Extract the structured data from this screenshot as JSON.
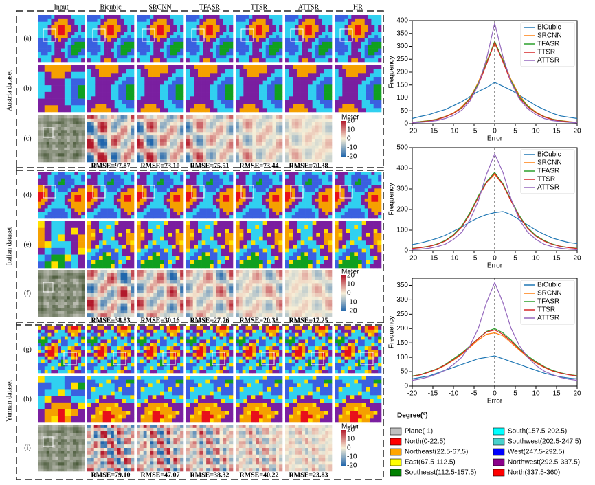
{
  "columns": [
    "Input",
    "Bicubic",
    "SRCNN",
    "TFASR",
    "TTSR",
    "ATTSR",
    "HR"
  ],
  "datasets": [
    {
      "name": "Austria dataset",
      "rows": [
        "(a)",
        "(b)",
        "(c)"
      ],
      "rmse": [
        "RMSE=97.87",
        "RMSE=73.10",
        "RMSE=75.51",
        "RMSE=73.44",
        "RMSE=70.38"
      ]
    },
    {
      "name": "Italian dataset",
      "rows": [
        "(d)",
        "(e)",
        "(f)"
      ],
      "rmse": [
        "RMSE=38.83",
        "RMSE=30.16",
        "RMSE=27.76",
        "RMSE=20.38",
        "RMSE=17.25"
      ]
    },
    {
      "name": "Yunnan dataset",
      "rows": [
        "(g)",
        "(h)",
        "(i)"
      ],
      "rmse": [
        "RMSE=79.10",
        "RMSE=47.07",
        "RMSE=38.32",
        "RMSE=40.22",
        "RMSE=23.83"
      ]
    }
  ],
  "colorbar": {
    "title": "Meter",
    "ticks": [
      20,
      10,
      0,
      -10,
      -20
    ]
  },
  "chart_data": [
    {
      "type": "line",
      "xlabel": "Error",
      "ylabel": "Frequency",
      "x": [
        -20,
        -18,
        -16,
        -14,
        -12,
        -10,
        -8,
        -6,
        -4,
        -2,
        0,
        2,
        4,
        6,
        8,
        10,
        12,
        14,
        16,
        18,
        20
      ],
      "xlim": [
        -20,
        20
      ],
      "xticks": [
        -20,
        -15,
        -10,
        -5,
        0,
        5,
        10,
        15,
        20
      ],
      "ylim": [
        0,
        400
      ],
      "yticks": [
        0,
        50,
        100,
        150,
        200,
        250,
        300,
        350,
        400
      ],
      "series": [
        {
          "name": "BiCubic",
          "color": "#1f77b4",
          "values": [
            20,
            28,
            35,
            45,
            55,
            70,
            85,
            105,
            125,
            140,
            160,
            145,
            130,
            110,
            90,
            70,
            55,
            40,
            30,
            25,
            20
          ]
        },
        {
          "name": "SRCNN",
          "color": "#ff7f0e",
          "values": [
            5,
            8,
            12,
            18,
            28,
            42,
            65,
            100,
            160,
            240,
            310,
            250,
            170,
            110,
            70,
            45,
            28,
            18,
            12,
            8,
            5
          ]
        },
        {
          "name": "TFASR",
          "color": "#2ca02c",
          "values": [
            5,
            8,
            11,
            17,
            27,
            40,
            62,
            98,
            155,
            235,
            320,
            245,
            165,
            105,
            68,
            43,
            27,
            17,
            11,
            7,
            5
          ]
        },
        {
          "name": "TTSR",
          "color": "#d62728",
          "values": [
            4,
            7,
            10,
            16,
            26,
            40,
            60,
            95,
            150,
            230,
            315,
            240,
            160,
            100,
            65,
            42,
            26,
            16,
            10,
            7,
            4
          ]
        },
        {
          "name": "ATTSR",
          "color": "#9467bd",
          "values": [
            3,
            5,
            8,
            12,
            20,
            32,
            52,
            88,
            150,
            250,
            390,
            260,
            160,
            95,
            58,
            35,
            20,
            12,
            8,
            5,
            3
          ]
        }
      ]
    },
    {
      "type": "line",
      "xlabel": "Error",
      "ylabel": "Frequency",
      "x": [
        -20,
        -18,
        -16,
        -14,
        -12,
        -10,
        -8,
        -6,
        -4,
        -2,
        0,
        2,
        4,
        6,
        8,
        10,
        12,
        14,
        16,
        18,
        20
      ],
      "xlim": [
        -20,
        20
      ],
      "xticks": [
        -20,
        -15,
        -10,
        -5,
        0,
        5,
        10,
        15,
        20
      ],
      "ylim": [
        0,
        500
      ],
      "yticks": [
        0,
        100,
        200,
        300,
        400,
        500
      ],
      "series": [
        {
          "name": "BiCubic",
          "color": "#1f77b4",
          "values": [
            30,
            38,
            48,
            60,
            75,
            95,
            115,
            140,
            160,
            175,
            185,
            190,
            175,
            150,
            125,
            100,
            80,
            62,
            50,
            40,
            35
          ]
        },
        {
          "name": "SRCNN",
          "color": "#ff7f0e",
          "values": [
            12,
            16,
            22,
            32,
            48,
            75,
            115,
            180,
            260,
            330,
            370,
            320,
            240,
            165,
            110,
            72,
            48,
            32,
            22,
            16,
            12
          ]
        },
        {
          "name": "TFASR",
          "color": "#2ca02c",
          "values": [
            12,
            16,
            22,
            33,
            50,
            78,
            120,
            185,
            265,
            335,
            380,
            325,
            245,
            170,
            112,
            74,
            50,
            33,
            22,
            16,
            12
          ]
        },
        {
          "name": "TTSR",
          "color": "#d62728",
          "values": [
            11,
            15,
            21,
            31,
            47,
            74,
            115,
            178,
            258,
            330,
            375,
            320,
            240,
            165,
            108,
            70,
            47,
            31,
            21,
            15,
            11
          ]
        },
        {
          "name": "ATTSR",
          "color": "#9467bd",
          "values": [
            5,
            8,
            12,
            20,
            32,
            55,
            90,
            150,
            240,
            370,
            470,
            380,
            250,
            150,
            90,
            55,
            32,
            20,
            12,
            8,
            5
          ]
        }
      ]
    },
    {
      "type": "line",
      "xlabel": "Error",
      "ylabel": "Frequency",
      "x": [
        -20,
        -18,
        -16,
        -14,
        -12,
        -10,
        -8,
        -6,
        -4,
        -2,
        0,
        2,
        4,
        6,
        8,
        10,
        12,
        14,
        16,
        18,
        20
      ],
      "xlim": [
        -20,
        20
      ],
      "xticks": [
        -20,
        -15,
        -10,
        -5,
        0,
        5,
        10,
        15,
        20
      ],
      "ylim": [
        0,
        375
      ],
      "yticks": [
        0,
        50,
        100,
        150,
        200,
        250,
        300,
        350
      ],
      "series": [
        {
          "name": "BiCubic",
          "color": "#1f77b4",
          "values": [
            25,
            30,
            35,
            45,
            55,
            65,
            75,
            85,
            95,
            100,
            105,
            95,
            85,
            75,
            65,
            55,
            45,
            38,
            32,
            28,
            25
          ]
        },
        {
          "name": "SRCNN",
          "color": "#ff7f0e",
          "values": [
            35,
            40,
            48,
            58,
            72,
            90,
            110,
            135,
            160,
            180,
            185,
            175,
            150,
            125,
            100,
            80,
            65,
            52,
            45,
            40,
            35
          ]
        },
        {
          "name": "TFASR",
          "color": "#2ca02c",
          "values": [
            35,
            40,
            50,
            60,
            75,
            95,
            115,
            140,
            165,
            190,
            200,
            185,
            160,
            130,
            105,
            85,
            68,
            55,
            46,
            40,
            36
          ]
        },
        {
          "name": "TTSR",
          "color": "#d62728",
          "values": [
            34,
            39,
            48,
            59,
            73,
            92,
            112,
            138,
            165,
            188,
            195,
            180,
            155,
            128,
            102,
            82,
            66,
            53,
            45,
            39,
            35
          ]
        },
        {
          "name": "ATTSR",
          "color": "#9467bd",
          "values": [
            20,
            25,
            32,
            42,
            55,
            75,
            100,
            140,
            200,
            290,
            360,
            290,
            200,
            140,
            100,
            72,
            52,
            40,
            30,
            24,
            20
          ]
        }
      ]
    }
  ],
  "legend": {
    "title": "Degree(°)",
    "items": [
      {
        "label": "Plane(-1)",
        "color": "#c0c0c0"
      },
      {
        "label": "North(0-22.5)",
        "color": "#ff0000"
      },
      {
        "label": "Northeast(22.5-67.5)",
        "color": "#ffa500"
      },
      {
        "label": "East(67.5-112.5)",
        "color": "#ffff00"
      },
      {
        "label": "Southeast(112.5-157.5)",
        "color": "#008000"
      },
      {
        "label": "South(157.5-202.5)",
        "color": "#00ffff"
      },
      {
        "label": "Southwest(202.5-247.5)",
        "color": "#48d1cc"
      },
      {
        "label": "West(247.5-292.5)",
        "color": "#0000ff"
      },
      {
        "label": "Northwest(292.5-337.5)",
        "color": "#8b008b"
      },
      {
        "label": "North(337.5-360)",
        "color": "#ff0000"
      }
    ]
  }
}
